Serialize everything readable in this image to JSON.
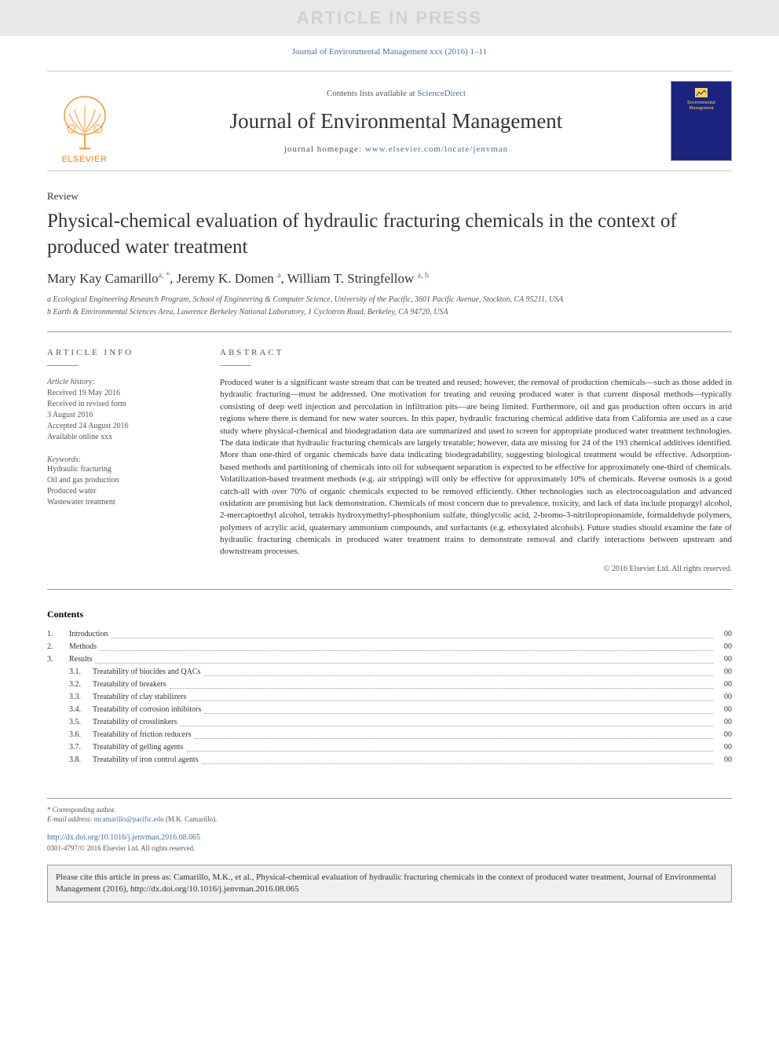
{
  "watermark": "ARTICLE IN PRESS",
  "header_citation": {
    "journal": "Journal of Environmental Management",
    "vol_year": "xxx (2016)",
    "pages": "1–11"
  },
  "masthead": {
    "publisher": "ELSEVIER",
    "contents_prefix": "Contents lists available at",
    "contents_link": "ScienceDirect",
    "journal_name": "Journal of Environmental Management",
    "homepage_label": "journal homepage:",
    "homepage_url": "www.elsevier.com/locate/jenvman",
    "cover_text_top": "Environmental",
    "cover_text_bot": "Management",
    "logo_color": "#ff8200",
    "cover_bg": "#1a237e",
    "cover_text_color": "#ffd54f"
  },
  "article": {
    "type": "Review",
    "title": "Physical-chemical evaluation of hydraulic fracturing chemicals in the context of produced water treatment",
    "authors": "Mary Kay Camarillo",
    "authors_sup1": "a, *",
    "authors_mid": ", Jeremy K. Domen ",
    "authors_sup2": "a",
    "authors_end": ", William T. Stringfellow ",
    "authors_sup3": "a, b",
    "affiliations": [
      "a Ecological Engineering Research Program, School of Engineering & Computer Science, University of the Pacific, 3601 Pacific Avenue, Stockton, CA 95211, USA",
      "b Earth & Environmental Sciences Area, Lawrence Berkeley National Laboratory, 1 Cyclotron Road, Berkeley, CA 94720, USA"
    ]
  },
  "info": {
    "heading": "ARTICLE INFO",
    "history_label": "Article history:",
    "history": [
      "Received 19 May 2016",
      "Received in revised form",
      "3 August 2016",
      "Accepted 24 August 2016",
      "Available online xxx"
    ],
    "keywords_label": "Keywords:",
    "keywords": [
      "Hydraulic fracturing",
      "Oil and gas production",
      "Produced water",
      "Wastewater treatment"
    ]
  },
  "abstract": {
    "heading": "ABSTRACT",
    "text": "Produced water is a significant waste stream that can be treated and reused; however, the removal of production chemicals—such as those added in hydraulic fracturing—must be addressed. One motivation for treating and reusing produced water is that current disposal methods—typically consisting of deep well injection and percolation in infiltration pits—are being limited. Furthermore, oil and gas production often occurs in arid regions where there is demand for new water sources. In this paper, hydraulic fracturing chemical additive data from California are used as a case study where physical-chemical and biodegradation data are summarized and used to screen for appropriate produced water treatment technologies. The data indicate that hydraulic fracturing chemicals are largely treatable; however, data are missing for 24 of the 193 chemical additives identified. More than one-third of organic chemicals have data indicating biodegradability, suggesting biological treatment would be effective. Adsorption-based methods and partitioning of chemicals into oil for subsequent separation is expected to be effective for approximately one-third of chemicals. Volatilization-based treatment methods (e.g. air stripping) will only be effective for approximately 10% of chemicals. Reverse osmosis is a good catch-all with over 70% of organic chemicals expected to be removed efficiently. Other technologies such as electrocoagulation and advanced oxidation are promising but lack demonstration. Chemicals of most concern due to prevalence, toxicity, and lack of data include propargyl alcohol, 2-mercaptoethyl alcohol, tetrakis hydroxymethyl-phosphonium sulfate, thioglycolic acid, 2-bromo-3-nitrilopropionamide, formaldehyde polymers, polymers of acrylic acid, quaternary ammonium compounds, and surfactants (e.g. ethoxylated alcohols). Future studies should examine the fate of hydraulic fracturing chemicals in produced water treatment trains to demonstrate removal and clarify interactions between upstream and downstream processes.",
    "copyright": "© 2016 Elsevier Ltd. All rights reserved."
  },
  "contents": {
    "heading": "Contents",
    "items": [
      {
        "num": "1.",
        "label": "Introduction",
        "page": "00"
      },
      {
        "num": "2.",
        "label": "Methods",
        "page": "00"
      },
      {
        "num": "3.",
        "label": "Results",
        "page": "00"
      }
    ],
    "subitems": [
      {
        "num": "3.1.",
        "label": "Treatability of biocides and QACs",
        "page": "00"
      },
      {
        "num": "3.2.",
        "label": "Treatability of breakers",
        "page": "00"
      },
      {
        "num": "3.3.",
        "label": "Treatability of clay stabilizers",
        "page": "00"
      },
      {
        "num": "3.4.",
        "label": "Treatability of corrosion inhibitors",
        "page": "00"
      },
      {
        "num": "3.5.",
        "label": "Treatability of crosslinkers",
        "page": "00"
      },
      {
        "num": "3.6.",
        "label": "Treatability of friction reducers",
        "page": "00"
      },
      {
        "num": "3.7.",
        "label": "Treatability of gelling agents",
        "page": "00"
      },
      {
        "num": "3.8.",
        "label": "Treatability of iron control agents",
        "page": "00"
      }
    ]
  },
  "footer": {
    "corresponding_label": "* Corresponding author.",
    "email_label": "E-mail address:",
    "email": "mcamarillo@pacific.edu",
    "email_suffix": " (M.K. Camarillo).",
    "doi": "http://dx.doi.org/10.1016/j.jenvman.2016.08.065",
    "issn_copyright": "0301-4797/© 2016 Elsevier Ltd. All rights reserved."
  },
  "cite_box": "Please cite this article in press as: Camarillo, M.K., et al., Physical-chemical evaluation of hydraulic fracturing chemicals in the context of produced water treatment, Journal of Environmental Management (2016), http://dx.doi.org/10.1016/j.jenvman.2016.08.065",
  "colors": {
    "link": "#4a6fa5",
    "text": "#333333",
    "muted": "#555555",
    "border": "#999999"
  }
}
